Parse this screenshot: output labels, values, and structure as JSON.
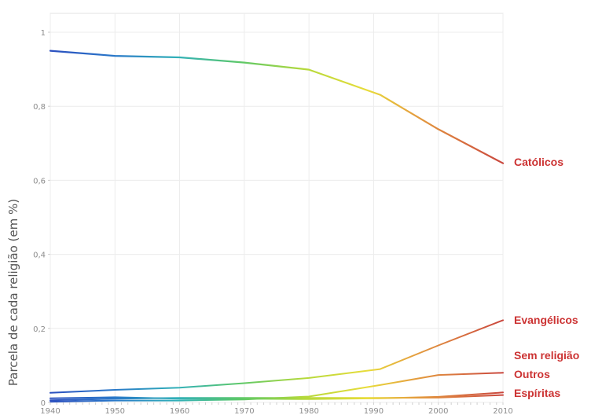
{
  "chart_data": {
    "type": "line",
    "title": "",
    "xlabel": "",
    "ylabel": "Parcela de cada religião (em %)",
    "xlim": [
      1940,
      2010
    ],
    "ylim": [
      0,
      1
    ],
    "grid": true,
    "legend": "direct labels at right end of lines",
    "x_ticks": [
      "1940",
      "1950",
      "1960",
      "1970",
      "1980",
      "1990",
      "2000",
      "2010"
    ],
    "y_ticks": [
      "0",
      "0,2",
      "0,4",
      "0,6",
      "0,8",
      "1"
    ],
    "x": [
      1940,
      1950,
      1960,
      1970,
      1980,
      1991,
      2000,
      2010
    ],
    "series": [
      {
        "name": "Católicos",
        "values": [
          0.95,
          0.936,
          0.932,
          0.918,
          0.899,
          0.831,
          0.738,
          0.646
        ]
      },
      {
        "name": "Evangélicos",
        "values": [
          0.026,
          0.034,
          0.04,
          0.052,
          0.066,
          0.09,
          0.154,
          0.222
        ]
      },
      {
        "name": "Sem religião",
        "values": [
          0.002,
          0.005,
          0.005,
          0.008,
          0.016,
          0.047,
          0.074,
          0.08
        ]
      },
      {
        "name": "Outros",
        "values": [
          0.011,
          0.014,
          0.01,
          0.01,
          0.009,
          0.011,
          0.015,
          0.027
        ]
      },
      {
        "name": "Espíritas",
        "values": [
          0.006,
          0.01,
          0.012,
          0.012,
          0.012,
          0.012,
          0.013,
          0.02
        ]
      }
    ],
    "label_color": "#cc3333"
  }
}
